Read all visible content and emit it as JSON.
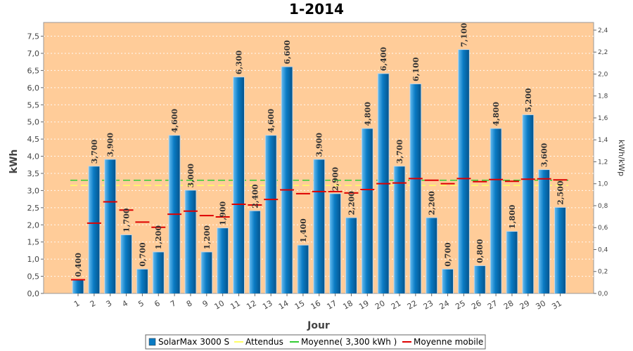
{
  "chart_data": {
    "type": "bar",
    "title": "1-2014",
    "xlabel": "Jour",
    "ylabel": "kWh",
    "y2label": "kWh/kWp",
    "ylim": [
      0,
      7.9
    ],
    "y2lim": [
      0,
      2.47
    ],
    "yticks": [
      "0,0",
      "0,5",
      "1,0",
      "1,5",
      "2,0",
      "2,5",
      "3,0",
      "3,5",
      "4,0",
      "4,5",
      "5,0",
      "5,5",
      "6,0",
      "6,5",
      "7,0",
      "7,5"
    ],
    "y2ticks": [
      "0,0",
      "0,2",
      "0,4",
      "0,6",
      "0,8",
      "1,0",
      "1,2",
      "1,4",
      "1,6",
      "1,8",
      "2,0",
      "2,2",
      "2,4"
    ],
    "grid": true,
    "legend_position": "bottom",
    "categories": [
      "1",
      "2",
      "3",
      "4",
      "5",
      "6",
      "7",
      "8",
      "9",
      "10",
      "11",
      "12",
      "13",
      "14",
      "15",
      "16",
      "17",
      "18",
      "19",
      "20",
      "21",
      "22",
      "23",
      "24",
      "25",
      "26",
      "27",
      "28",
      "29",
      "30",
      "31"
    ],
    "series": [
      {
        "name": "SolarMax 3000 S",
        "kind": "bar",
        "values": [
          0.4,
          3.7,
          3.9,
          1.7,
          0.7,
          1.2,
          4.6,
          3.0,
          1.2,
          1.9,
          6.3,
          2.4,
          4.6,
          6.6,
          1.4,
          3.9,
          2.9,
          2.2,
          4.8,
          6.4,
          3.7,
          6.1,
          2.2,
          0.7,
          7.1,
          0.8,
          4.8,
          1.8,
          5.2,
          3.6,
          2.5
        ],
        "labels": [
          "0,400",
          "3,700",
          "3,900",
          "1,700",
          "0,700",
          "1,200",
          "4,600",
          "3,000",
          "1,200",
          "1,900",
          "6,300",
          "2,400",
          "4,600",
          "6,600",
          "1,400",
          "3,900",
          "2,900",
          "2,200",
          "4,800",
          "6,400",
          "3,700",
          "6,100",
          "2,200",
          "0,700",
          "7,100",
          "0,800",
          "4,800",
          "1,800",
          "5,200",
          "3,600",
          "2,500"
        ]
      },
      {
        "name": "Attendus",
        "kind": "line",
        "value": 3.15
      },
      {
        "name": "Moyenne( 3,300 kWh )",
        "kind": "line",
        "value": 3.3
      },
      {
        "name": "Moyenne mobile",
        "kind": "marker",
        "values": [
          0.4,
          2.05,
          2.67,
          2.43,
          2.08,
          1.93,
          2.31,
          2.4,
          2.27,
          2.23,
          2.6,
          2.58,
          2.74,
          3.02,
          2.91,
          2.97,
          2.97,
          2.93,
          3.03,
          3.2,
          3.22,
          3.35,
          3.3,
          3.2,
          3.35,
          3.26,
          3.32,
          3.27,
          3.33,
          3.34,
          3.31
        ]
      }
    ],
    "colors": {
      "bar": "#0a7bc4",
      "bar_edge": "#c9d6e0",
      "plot_bg": "#ffcc99",
      "attendus": "#ffff66",
      "moyenne": "#33cc33",
      "moyenne_mobile": "#dd0000"
    }
  }
}
